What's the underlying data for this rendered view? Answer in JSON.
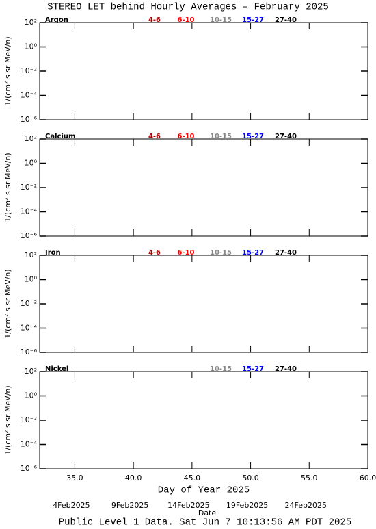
{
  "title": "STEREO LET behind Hourly Averages – February 2025",
  "footer": "Public Level 1 Data. Sat Jun  7 10:13:56 AM PDT 2025",
  "chart_data": [
    {
      "type": "line",
      "title": "Argon",
      "ylabel": "1/(cm² s sr MeV/n)",
      "series": [
        {
          "name": "4-6",
          "color": "#b00000"
        },
        {
          "name": "6-10",
          "color": "#ff0000"
        },
        {
          "name": "10-15",
          "color": "#888888"
        },
        {
          "name": "15-27",
          "color": "#0000ff"
        },
        {
          "name": "27-40",
          "color": "#000000"
        }
      ],
      "xlim": [
        32,
        60
      ],
      "xticks": [
        35,
        40,
        45,
        50,
        55,
        60
      ],
      "ylim": [
        1e-06,
        100
      ],
      "log_y": true,
      "yticks": [
        {
          "value": 100,
          "label": "10²"
        },
        {
          "value": 1,
          "label": "10⁰"
        },
        {
          "value": 0.01,
          "label": "10⁻²"
        },
        {
          "value": 0.0001,
          "label": "10⁻⁴"
        },
        {
          "value": 1e-06,
          "label": "10⁻⁶"
        }
      ]
    },
    {
      "type": "line",
      "title": "Calcium",
      "ylabel": "1/(cm² s sr MeV/n)",
      "series": [
        {
          "name": "4-6",
          "color": "#b00000"
        },
        {
          "name": "6-10",
          "color": "#ff0000"
        },
        {
          "name": "10-15",
          "color": "#888888"
        },
        {
          "name": "15-27",
          "color": "#0000ff"
        },
        {
          "name": "27-40",
          "color": "#000000"
        }
      ],
      "xlim": [
        32,
        60
      ],
      "xticks": [
        35,
        40,
        45,
        50,
        55,
        60
      ],
      "ylim": [
        1e-06,
        100
      ],
      "log_y": true,
      "yticks": [
        {
          "value": 100,
          "label": "10²"
        },
        {
          "value": 1,
          "label": "10⁰"
        },
        {
          "value": 0.01,
          "label": "10⁻²"
        },
        {
          "value": 0.0001,
          "label": "10⁻⁴"
        },
        {
          "value": 1e-06,
          "label": "10⁻⁶"
        }
      ]
    },
    {
      "type": "line",
      "title": "Iron",
      "ylabel": "1/(cm² s sr MeV/n)",
      "series": [
        {
          "name": "4-6",
          "color": "#b00000"
        },
        {
          "name": "6-10",
          "color": "#ff0000"
        },
        {
          "name": "10-15",
          "color": "#888888"
        },
        {
          "name": "15-27",
          "color": "#0000ff"
        },
        {
          "name": "27-40",
          "color": "#000000"
        }
      ],
      "xlim": [
        32,
        60
      ],
      "xticks": [
        35,
        40,
        45,
        50,
        55,
        60
      ],
      "ylim": [
        1e-06,
        100
      ],
      "log_y": true,
      "yticks": [
        {
          "value": 100,
          "label": "10²"
        },
        {
          "value": 1,
          "label": "10⁰"
        },
        {
          "value": 0.01,
          "label": "10⁻²"
        },
        {
          "value": 0.0001,
          "label": "10⁻⁴"
        },
        {
          "value": 1e-06,
          "label": "10⁻⁶"
        }
      ]
    },
    {
      "type": "line",
      "title": "Nickel",
      "ylabel": "1/(cm² s sr MeV/n)",
      "series": [
        {
          "name": "10-15",
          "color": "#888888"
        },
        {
          "name": "15-27",
          "color": "#0000ff"
        },
        {
          "name": "27-40",
          "color": "#000000"
        }
      ],
      "xlim": [
        32,
        60
      ],
      "xticks": [
        {
          "value": 35,
          "label": "35.0"
        },
        {
          "value": 40,
          "label": "40.0"
        },
        {
          "value": 45,
          "label": "45.0"
        },
        {
          "value": 50,
          "label": "50.0"
        },
        {
          "value": 55,
          "label": "55.0"
        },
        {
          "value": 60,
          "label": "60.0"
        }
      ],
      "xlabel": "Day of Year 2025",
      "date_ticks": [
        {
          "value": 35,
          "label": "4Feb2025"
        },
        {
          "value": 40,
          "label": "9Feb2025"
        },
        {
          "value": 45,
          "label": "14Feb2025"
        },
        {
          "value": 50,
          "label": "19Feb2025"
        },
        {
          "value": 55,
          "label": "24Feb2025"
        }
      ],
      "date_label": "Date",
      "ylim": [
        1e-06,
        100
      ],
      "log_y": true,
      "yticks": [
        {
          "value": 100,
          "label": "10²"
        },
        {
          "value": 1,
          "label": "10⁰"
        },
        {
          "value": 0.01,
          "label": "10⁻²"
        },
        {
          "value": 0.0001,
          "label": "10⁻⁴"
        },
        {
          "value": 1e-06,
          "label": "10⁻⁶"
        }
      ]
    }
  ]
}
